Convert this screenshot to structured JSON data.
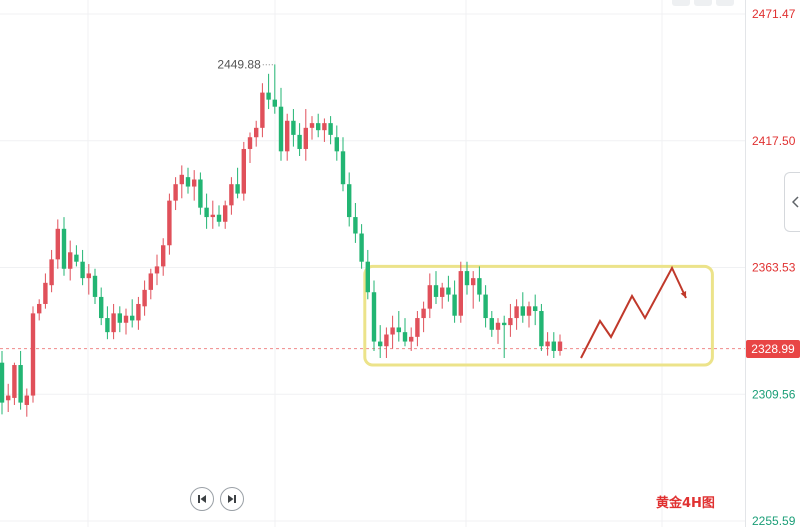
{
  "chart_data": {
    "type": "candlestick",
    "y_axis": {
      "ticks": [
        {
          "value": 2471.47,
          "label": "2471.47",
          "color": "#e03131"
        },
        {
          "value": 2417.5,
          "label": "2417.50",
          "color": "#e03131"
        },
        {
          "value": 2363.53,
          "label": "2363.53",
          "color": "#e03131"
        },
        {
          "value": 2309.56,
          "label": "2309.56",
          "color": "#1a9e77"
        },
        {
          "value": 2255.59,
          "label": "2255.59",
          "color": "#1a9e77"
        }
      ],
      "range": [
        2253,
        2475
      ]
    },
    "current_price": {
      "value": 2328.99,
      "label": "2328.99",
      "color": "#e84545"
    },
    "high_annotation": {
      "value": 2449.88,
      "label": "2449.88"
    },
    "candles": [
      [
        2323,
        2328,
        2301,
        2306
      ],
      [
        2307,
        2314,
        2302,
        2309
      ],
      [
        2308,
        2323,
        2305,
        2322
      ],
      [
        2322,
        2328,
        2303,
        2306
      ],
      [
        2305,
        2312,
        2300,
        2309
      ],
      [
        2309,
        2347,
        2306,
        2344
      ],
      [
        2344,
        2350,
        2341,
        2348
      ],
      [
        2348,
        2361,
        2346,
        2357
      ],
      [
        2356,
        2371,
        2353,
        2367
      ],
      [
        2367,
        2384,
        2363,
        2380
      ],
      [
        2380,
        2385,
        2360,
        2363
      ],
      [
        2363,
        2375,
        2358,
        2370
      ],
      [
        2369,
        2373,
        2364,
        2366
      ],
      [
        2366,
        2371,
        2356,
        2359
      ],
      [
        2359,
        2365,
        2352,
        2361
      ],
      [
        2360,
        2363,
        2348,
        2351
      ],
      [
        2351,
        2355,
        2339,
        2342
      ],
      [
        2342,
        2347,
        2333,
        2336
      ],
      [
        2336,
        2348,
        2333,
        2344
      ],
      [
        2344,
        2347,
        2336,
        2340
      ],
      [
        2340,
        2346,
        2335,
        2343
      ],
      [
        2343,
        2350,
        2338,
        2341
      ],
      [
        2341,
        2351,
        2337,
        2348
      ],
      [
        2347,
        2358,
        2343,
        2354
      ],
      [
        2354,
        2363,
        2350,
        2361
      ],
      [
        2361,
        2369,
        2356,
        2364
      ],
      [
        2364,
        2376,
        2360,
        2373
      ],
      [
        2373,
        2395,
        2369,
        2392
      ],
      [
        2392,
        2402,
        2388,
        2399
      ],
      [
        2399,
        2407,
        2393,
        2403
      ],
      [
        2402,
        2406,
        2395,
        2398
      ],
      [
        2398,
        2405,
        2392,
        2401
      ],
      [
        2401,
        2404,
        2386,
        2389
      ],
      [
        2389,
        2395,
        2380,
        2385
      ],
      [
        2385,
        2392,
        2380,
        2386
      ],
      [
        2386,
        2390,
        2381,
        2383
      ],
      [
        2383,
        2392,
        2380,
        2390
      ],
      [
        2390,
        2402,
        2386,
        2399
      ],
      [
        2399,
        2406,
        2393,
        2395
      ],
      [
        2395,
        2417,
        2392,
        2414
      ],
      [
        2414,
        2421,
        2408,
        2419
      ],
      [
        2419,
        2426,
        2415,
        2423
      ],
      [
        2423,
        2442,
        2419,
        2438
      ],
      [
        2438,
        2446,
        2431,
        2435
      ],
      [
        2435,
        2450,
        2429,
        2432
      ],
      [
        2432,
        2440,
        2409,
        2413
      ],
      [
        2413,
        2429,
        2409,
        2426
      ],
      [
        2426,
        2431,
        2415,
        2420
      ],
      [
        2420,
        2425,
        2411,
        2414
      ],
      [
        2414,
        2431,
        2409,
        2423
      ],
      [
        2423,
        2428,
        2418,
        2425
      ],
      [
        2425,
        2429,
        2419,
        2422
      ],
      [
        2422,
        2427,
        2417,
        2425
      ],
      [
        2425,
        2428,
        2416,
        2420
      ],
      [
        2419,
        2424,
        2409,
        2413
      ],
      [
        2413,
        2419,
        2396,
        2399
      ],
      [
        2399,
        2404,
        2381,
        2385
      ],
      [
        2385,
        2391,
        2374,
        2378
      ],
      [
        2378,
        2382,
        2363,
        2366
      ],
      [
        2366,
        2371,
        2350,
        2353
      ],
      [
        2353,
        2358,
        2328,
        2332
      ],
      [
        2332,
        2339,
        2325,
        2330
      ],
      [
        2330,
        2338,
        2325,
        2335
      ],
      [
        2335,
        2343,
        2329,
        2338
      ],
      [
        2338,
        2345,
        2332,
        2336
      ],
      [
        2336,
        2342,
        2330,
        2332
      ],
      [
        2332,
        2338,
        2328,
        2334
      ],
      [
        2334,
        2345,
        2330,
        2342
      ],
      [
        2342,
        2349,
        2336,
        2346
      ],
      [
        2346,
        2361,
        2342,
        2356
      ],
      [
        2356,
        2362,
        2348,
        2351
      ],
      [
        2351,
        2357,
        2346,
        2355
      ],
      [
        2355,
        2360,
        2349,
        2352
      ],
      [
        2352,
        2358,
        2340,
        2343
      ],
      [
        2343,
        2366,
        2340,
        2362
      ],
      [
        2362,
        2366,
        2352,
        2356
      ],
      [
        2356,
        2362,
        2346,
        2359
      ],
      [
        2359,
        2364,
        2349,
        2352
      ],
      [
        2352,
        2356,
        2338,
        2342
      ],
      [
        2342,
        2345,
        2334,
        2337
      ],
      [
        2337,
        2342,
        2331,
        2340
      ],
      [
        2340,
        2343,
        2325,
        2339
      ],
      [
        2339,
        2348,
        2334,
        2342
      ],
      [
        2342,
        2350,
        2337,
        2347
      ],
      [
        2347,
        2353,
        2340,
        2343
      ],
      [
        2343,
        2349,
        2338,
        2347
      ],
      [
        2347,
        2352,
        2339,
        2345
      ],
      [
        2345,
        2348,
        2328,
        2330
      ],
      [
        2330,
        2336,
        2326,
        2332
      ],
      [
        2332,
        2336,
        2325,
        2328
      ],
      [
        2328,
        2335,
        2326,
        2332
      ]
    ],
    "range_box": {
      "x_from_candle": 59,
      "x_to_candle": 92,
      "y_top": 2364,
      "y_bottom": 2322
    },
    "projection": [
      [
        2326,
        2328
      ],
      [
        2336,
        2344
      ],
      [
        2346,
        2338
      ],
      [
        2356,
        2357
      ],
      [
        2366,
        2348
      ],
      [
        2376,
        2367
      ],
      [
        2386,
        2356
      ]
    ],
    "watermark": "黄金4H图"
  }
}
